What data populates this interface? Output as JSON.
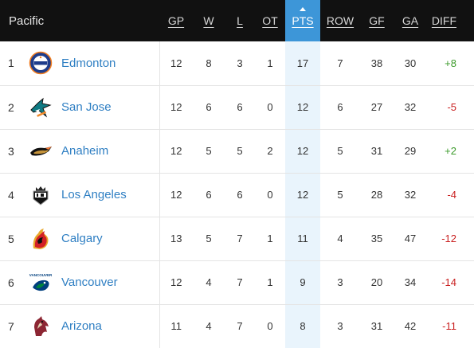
{
  "header": {
    "division": "Pacific",
    "columns": [
      "GP",
      "W",
      "L",
      "OT",
      "PTS",
      "ROW",
      "GF",
      "GA",
      "DIFF"
    ]
  },
  "colors": {
    "header_bg": "#111111",
    "sorted_bg": "#3d96d8",
    "team_link": "#2f7fc3",
    "positive": "#3c9b2b",
    "negative": "#c91f1f"
  },
  "rows": [
    {
      "rank": "1",
      "team": "Edmonton",
      "logo_icon": "edmonton-oilers-logo-icon",
      "gp": "12",
      "w": "8",
      "l": "3",
      "ot": "1",
      "pts": "17",
      "row": "7",
      "gf": "38",
      "ga": "30",
      "diff": "+8"
    },
    {
      "rank": "2",
      "team": "San Jose",
      "logo_icon": "san-jose-sharks-logo-icon",
      "gp": "12",
      "w": "6",
      "l": "6",
      "ot": "0",
      "pts": "12",
      "row": "6",
      "gf": "27",
      "ga": "32",
      "diff": "-5"
    },
    {
      "rank": "3",
      "team": "Anaheim",
      "logo_icon": "anaheim-ducks-logo-icon",
      "gp": "12",
      "w": "5",
      "l": "5",
      "ot": "2",
      "pts": "12",
      "row": "5",
      "gf": "31",
      "ga": "29",
      "diff": "+2"
    },
    {
      "rank": "4",
      "team": "Los Angeles",
      "logo_icon": "los-angeles-kings-logo-icon",
      "gp": "12",
      "w": "6",
      "l": "6",
      "ot": "0",
      "pts": "12",
      "row": "5",
      "gf": "28",
      "ga": "32",
      "diff": "-4"
    },
    {
      "rank": "5",
      "team": "Calgary",
      "logo_icon": "calgary-flames-logo-icon",
      "gp": "13",
      "w": "5",
      "l": "7",
      "ot": "1",
      "pts": "11",
      "row": "4",
      "gf": "35",
      "ga": "47",
      "diff": "-12"
    },
    {
      "rank": "6",
      "team": "Vancouver",
      "logo_icon": "vancouver-canucks-logo-icon",
      "gp": "12",
      "w": "4",
      "l": "7",
      "ot": "1",
      "pts": "9",
      "row": "3",
      "gf": "20",
      "ga": "34",
      "diff": "-14"
    },
    {
      "rank": "7",
      "team": "Arizona",
      "logo_icon": "arizona-coyotes-logo-icon",
      "gp": "11",
      "w": "4",
      "l": "7",
      "ot": "0",
      "pts": "8",
      "row": "3",
      "gf": "31",
      "ga": "42",
      "diff": "-11"
    }
  ]
}
